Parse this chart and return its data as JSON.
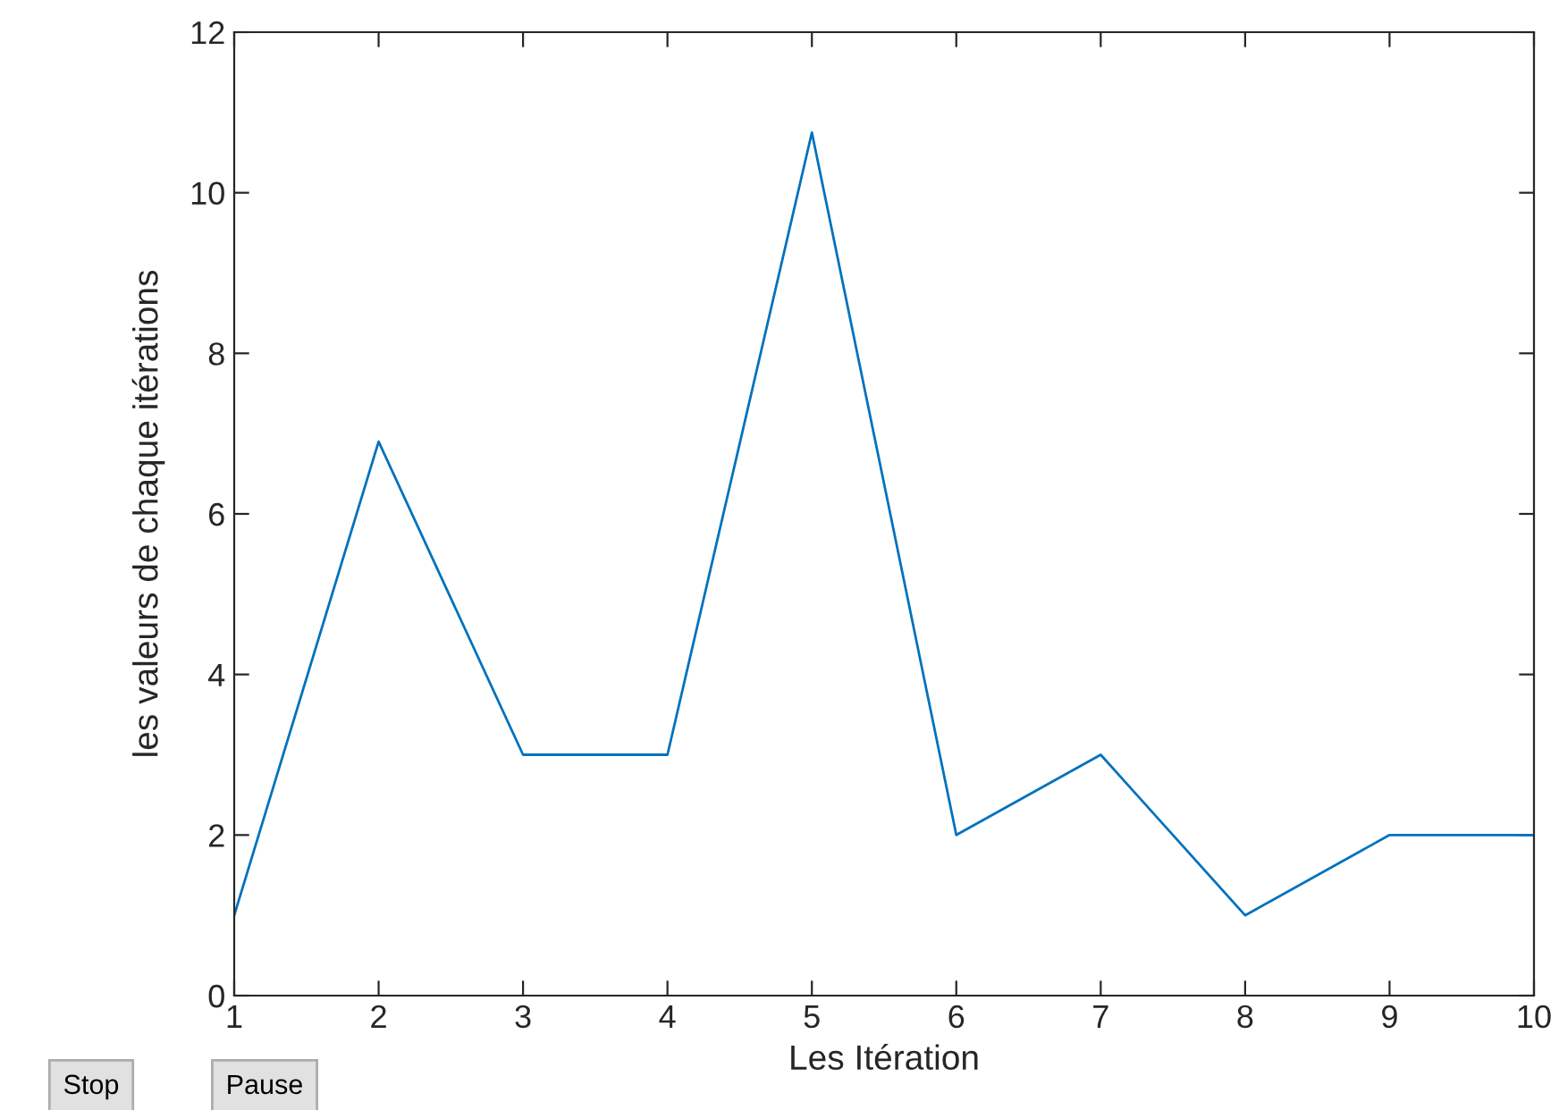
{
  "chart_data": {
    "type": "line",
    "xlabel": "Les Itération",
    "ylabel": "les valeurs de chaque itérations",
    "x": [
      1,
      2,
      3,
      4,
      5,
      6,
      7,
      8,
      9,
      10
    ],
    "series": [
      {
        "color": "#0072bd",
        "values": [
          1,
          6.9,
          3,
          3,
          10.75,
          2,
          3,
          1,
          2,
          2
        ]
      }
    ],
    "xlim": [
      1,
      10
    ],
    "xticks": [
      1,
      2,
      3,
      4,
      5,
      6,
      7,
      8,
      9,
      10
    ],
    "ylim": [
      0,
      12
    ],
    "yticks": [
      0,
      2,
      4,
      6,
      8,
      10,
      12
    ],
    "grid": false,
    "legend": false,
    "marker": "none",
    "line_style": "solid",
    "annotations": [
      "Stop",
      "Pause"
    ]
  }
}
